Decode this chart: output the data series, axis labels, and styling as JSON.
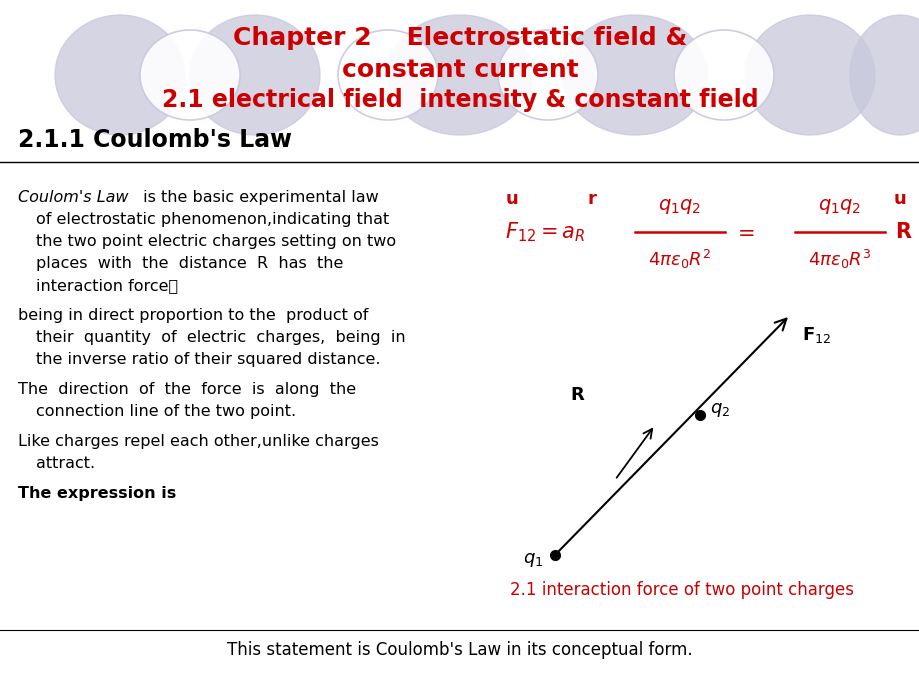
{
  "title_line1": "Chapter 2    Electrostatic field &",
  "title_line2": "constant current",
  "title_line3": "2.1 electrical field  intensity & constant field",
  "title_color": "#cc0000",
  "section_title": "2.1.1 Coulomb's Law",
  "section_title_color": "#000000",
  "bg_color": "#ffffff",
  "ellipse_color": "#c8c8dc",
  "bottom_text": "This statement is Coulomb's Law in its conceptual form.",
  "caption": "2.1 interaction force of two point charges",
  "caption_color": "#cc0000"
}
